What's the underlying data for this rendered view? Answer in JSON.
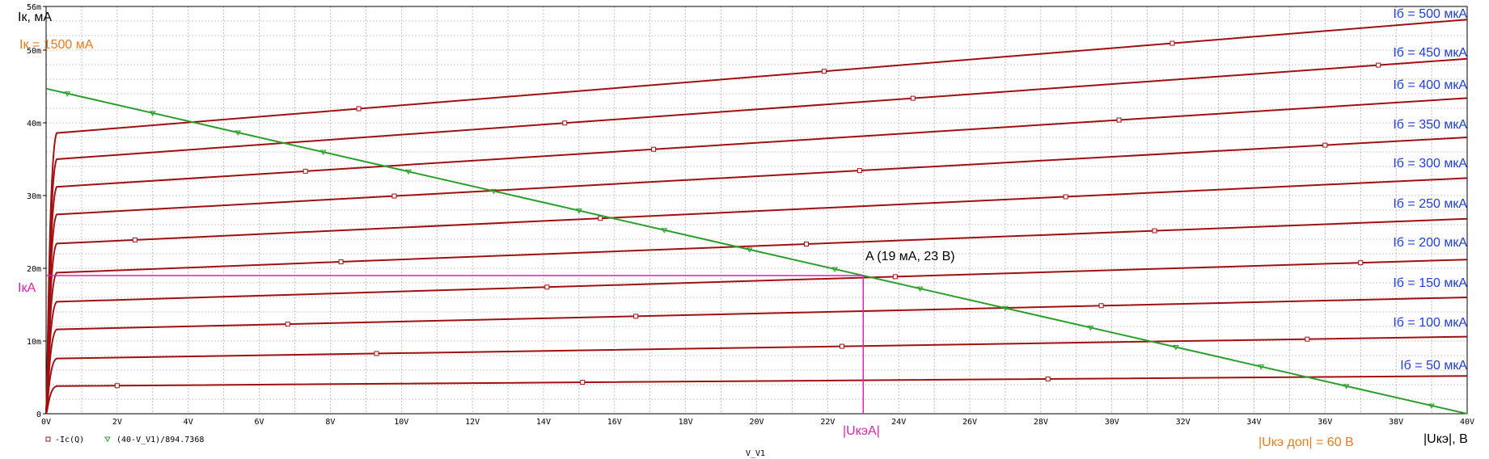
{
  "chart_data": {
    "type": "line",
    "xlabel": "V_V1",
    "xlim": [
      0,
      40
    ],
    "ylim": [
      0,
      56
    ],
    "x_ticks": [
      "0V",
      "2V",
      "4V",
      "6V",
      "8V",
      "10V",
      "12V",
      "14V",
      "16V",
      "18V",
      "20V",
      "22V",
      "24V",
      "26V",
      "28V",
      "30V",
      "32V",
      "34V",
      "36V",
      "38V",
      "40V"
    ],
    "y_ticks": [
      {
        "v": 0,
        "label": "0"
      },
      {
        "v": 10,
        "label": "10m"
      },
      {
        "v": 20,
        "label": "20m"
      },
      {
        "v": 30,
        "label": "30m"
      },
      {
        "v": 40,
        "label": "40m"
      },
      {
        "v": 50,
        "label": "50m"
      },
      {
        "v": 56,
        "label": "56m"
      }
    ],
    "grid": true,
    "legend": [
      {
        "name": "-Ic(Q)",
        "color": "#a01010",
        "marker": "square"
      },
      {
        "name": "(40-V_V1)/894.7368",
        "color": "#2aa02a",
        "marker": "triangle"
      }
    ],
    "series": [
      {
        "ib": "50",
        "values": [
          [
            0.3,
            3.8
          ],
          [
            40,
            5.2
          ]
        ]
      },
      {
        "ib": "100",
        "values": [
          [
            0.3,
            7.6
          ],
          [
            40,
            10.6
          ]
        ]
      },
      {
        "ib": "150",
        "values": [
          [
            0.3,
            11.6
          ],
          [
            40,
            16.0
          ]
        ]
      },
      {
        "ib": "200",
        "values": [
          [
            0.3,
            15.4
          ],
          [
            40,
            21.2
          ]
        ]
      },
      {
        "ib": "250",
        "values": [
          [
            0.3,
            19.4
          ],
          [
            40,
            26.8
          ]
        ]
      },
      {
        "ib": "300",
        "values": [
          [
            0.3,
            23.4
          ],
          [
            40,
            32.4
          ]
        ]
      },
      {
        "ib": "350",
        "values": [
          [
            0.3,
            27.4
          ],
          [
            40,
            38.0
          ]
        ]
      },
      {
        "ib": "400",
        "values": [
          [
            0.3,
            31.2
          ],
          [
            40,
            43.4
          ]
        ]
      },
      {
        "ib": "450",
        "values": [
          [
            0.3,
            35.0
          ],
          [
            40,
            48.8
          ]
        ]
      },
      {
        "ib": "500",
        "values": [
          [
            0.3,
            38.6
          ],
          [
            40,
            54.2
          ]
        ]
      }
    ],
    "load_line": {
      "x": [
        0,
        40
      ],
      "y": [
        44.7,
        0
      ]
    },
    "operating_point": {
      "x": 23,
      "y": 19
    }
  },
  "annotations": {
    "y_title": "Iк, мА",
    "ik_max": "Iк = 1500 мА",
    "ika": "IкА",
    "ukea": "|UкэА|",
    "point_a": "A (19 мА, 23 В)",
    "uke_dop": "|Uкэ доп| = 60 В",
    "x_title": "|Uкэ|, В",
    "ib_labels": [
      "Iб = 500 мкА",
      "Iб = 450 мкА",
      "Iб = 400 мкА",
      "Iб = 350 мкА",
      "Iб = 300 мкА",
      "Iб = 250 мкА",
      "Iб = 200 мкА",
      "Iб = 150 мкА",
      "Iб = 100 мкА",
      "Iб = 50 мкА"
    ]
  },
  "colors": {
    "curve": "#a01010",
    "load_line": "#2aa02a",
    "highlight": "#e020b0",
    "label_blue": "#1f3fd6",
    "label_orange": "#f07a1a"
  }
}
